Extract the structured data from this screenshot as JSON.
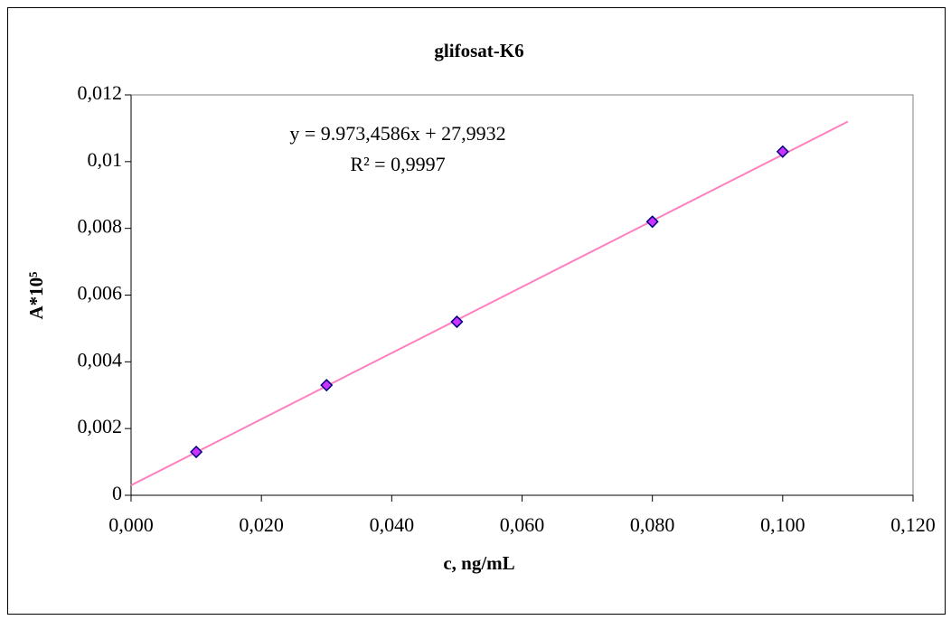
{
  "chart_data": {
    "type": "scatter",
    "title": "glifosat-K6",
    "x_label": "c, ng/mL",
    "y_label": "A*10⁵",
    "series": [
      {
        "name": "glifosat-K6",
        "color": "#cc33ff",
        "x": [
          0.01,
          0.03,
          0.05,
          0.08,
          0.1
        ],
        "values": [
          0.0013,
          0.0033,
          0.0052,
          0.0082,
          0.0103
        ]
      }
    ],
    "trendline": {
      "color": "#ff80c0",
      "x": [
        0,
        0.11
      ],
      "values": [
        0.0003,
        0.0112
      ]
    },
    "annotations": [
      "y = 9.973,4586x + 27,9932",
      "R² = 0,9997"
    ],
    "xlim": [
      0,
      0.12
    ],
    "xticks": [
      {
        "value": 0,
        "label": "0,000"
      },
      {
        "value": 0.02,
        "label": "0,020"
      },
      {
        "value": 0.04,
        "label": "0,040"
      },
      {
        "value": 0.06,
        "label": "0,060"
      },
      {
        "value": 0.08,
        "label": "0,080"
      },
      {
        "value": 0.1,
        "label": "0,100"
      },
      {
        "value": 0.12,
        "label": "0,120"
      }
    ],
    "ylim": [
      0,
      0.012
    ],
    "yticks": [
      0,
      {
        "value": 0.002,
        "label": "0,002"
      },
      {
        "value": 0.004,
        "label": "0,004"
      },
      {
        "value": 0.006,
        "label": "0,006"
      },
      {
        "value": 0.008,
        "label": "0,008"
      },
      {
        "value": 0.01,
        "label": "0,01"
      },
      {
        "value": 0.012,
        "label": "0,012"
      }
    ]
  }
}
